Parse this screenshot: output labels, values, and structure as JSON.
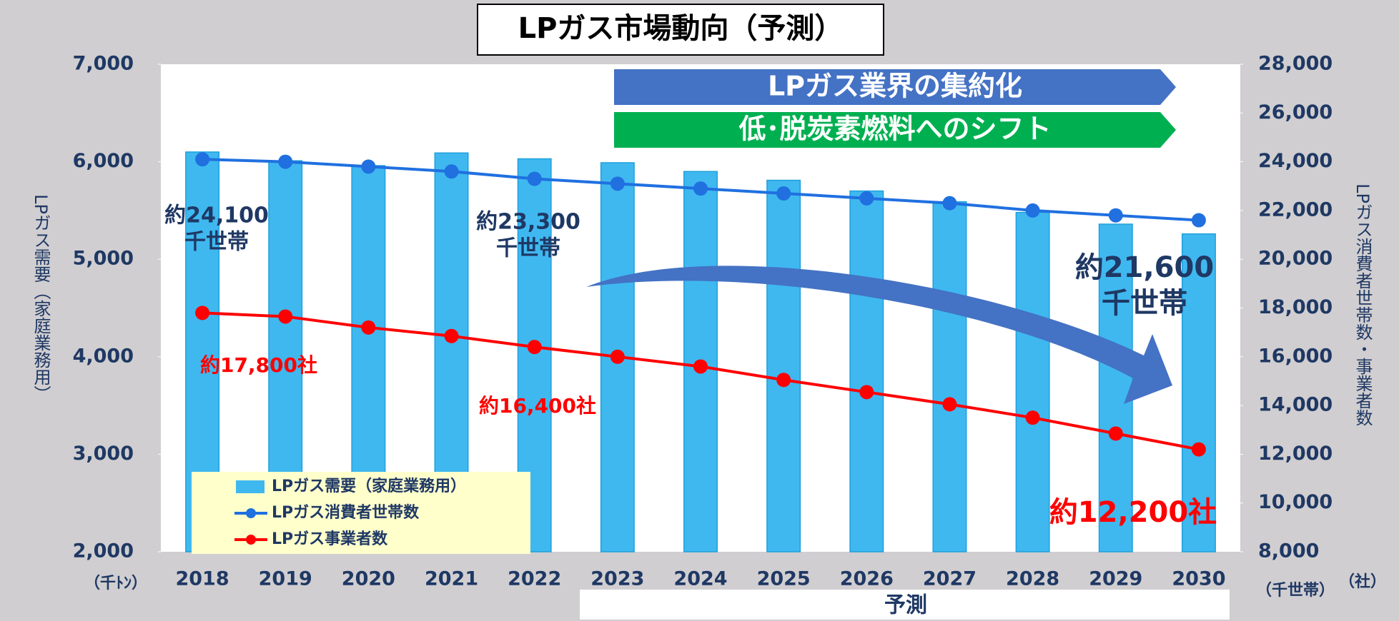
{
  "chart_data": {
    "type": "bar",
    "title": "LPガス市場動向（予測）",
    "banners": [
      {
        "text": "LPガス業界の集約化",
        "color": "#4472c4"
      },
      {
        "text": "低･脱炭素燃料へのシフト",
        "color": "#00b050"
      }
    ],
    "categories": [
      "2018",
      "2019",
      "2020",
      "2021",
      "2022",
      "2023",
      "2024",
      "2025",
      "2026",
      "2027",
      "2028",
      "2029",
      "2030"
    ],
    "series": [
      {
        "name": "LPガス需要（家庭業務用）",
        "type": "bar",
        "axis": "y",
        "color": "#3fb8f0",
        "values": [
          6100,
          6010,
          5960,
          6090,
          6030,
          5990,
          5900,
          5810,
          5700,
          5590,
          5480,
          5360,
          5260
        ]
      },
      {
        "name": "LPガス消費者世帯数",
        "type": "line",
        "axis": "y2",
        "color": "#2070e0",
        "values": [
          24100,
          24000,
          23800,
          23600,
          23300,
          23100,
          22900,
          22700,
          22500,
          22300,
          22000,
          21800,
          21600
        ]
      },
      {
        "name": "LPガス事業者数",
        "type": "line",
        "axis": "y2",
        "color": "#ff0000",
        "values": [
          17800,
          17650,
          17200,
          16850,
          16400,
          16000,
          15600,
          15050,
          14550,
          14050,
          13500,
          12850,
          12200
        ]
      }
    ],
    "ylim": [
      2000,
      7000
    ],
    "yticks": [
      {
        "value": 2000,
        "label": "2,000"
      },
      {
        "value": 3000,
        "label": "3,000"
      },
      {
        "value": 4000,
        "label": "4,000"
      },
      {
        "value": 5000,
        "label": "5,000"
      },
      {
        "value": 6000,
        "label": "6,000"
      },
      {
        "value": 7000,
        "label": "7,000"
      }
    ],
    "y2lim": [
      8000,
      28000
    ],
    "y2ticks": [
      {
        "value": 8000,
        "label": "8,000"
      },
      {
        "value": 10000,
        "label": "10,000"
      },
      {
        "value": 12000,
        "label": "12,000"
      },
      {
        "value": 14000,
        "label": "14,000"
      },
      {
        "value": 16000,
        "label": "16,000"
      },
      {
        "value": 18000,
        "label": "18,000"
      },
      {
        "value": 20000,
        "label": "20,000"
      },
      {
        "value": 22000,
        "label": "22,000"
      },
      {
        "value": 24000,
        "label": "24,000"
      },
      {
        "value": 26000,
        "label": "26,000"
      },
      {
        "value": 28000,
        "label": "28,000"
      }
    ],
    "ylabel": "LPガス需要（家庭業務用）",
    "y2label": "LPガス消費者世帯数・事業者数",
    "yunit": "（千ﾄﾝ）",
    "y2unit": "（千世帯）",
    "y3unit": "（社）",
    "forecast_label": "予測",
    "annotations": [
      {
        "lines": [
          "約24,100",
          "千世帯"
        ],
        "color": "#1f3864"
      },
      {
        "lines": [
          "約23,300",
          "千世帯"
        ],
        "color": "#1f3864"
      },
      {
        "lines": [
          "約21,600",
          "千世帯"
        ],
        "color": "#1f3864"
      },
      {
        "lines": [
          "約17,800社"
        ],
        "color": "#ff0000"
      },
      {
        "lines": [
          "約16,400社"
        ],
        "color": "#ff0000"
      },
      {
        "lines": [
          "約12,200社"
        ],
        "color": "#ff0000"
      }
    ]
  }
}
